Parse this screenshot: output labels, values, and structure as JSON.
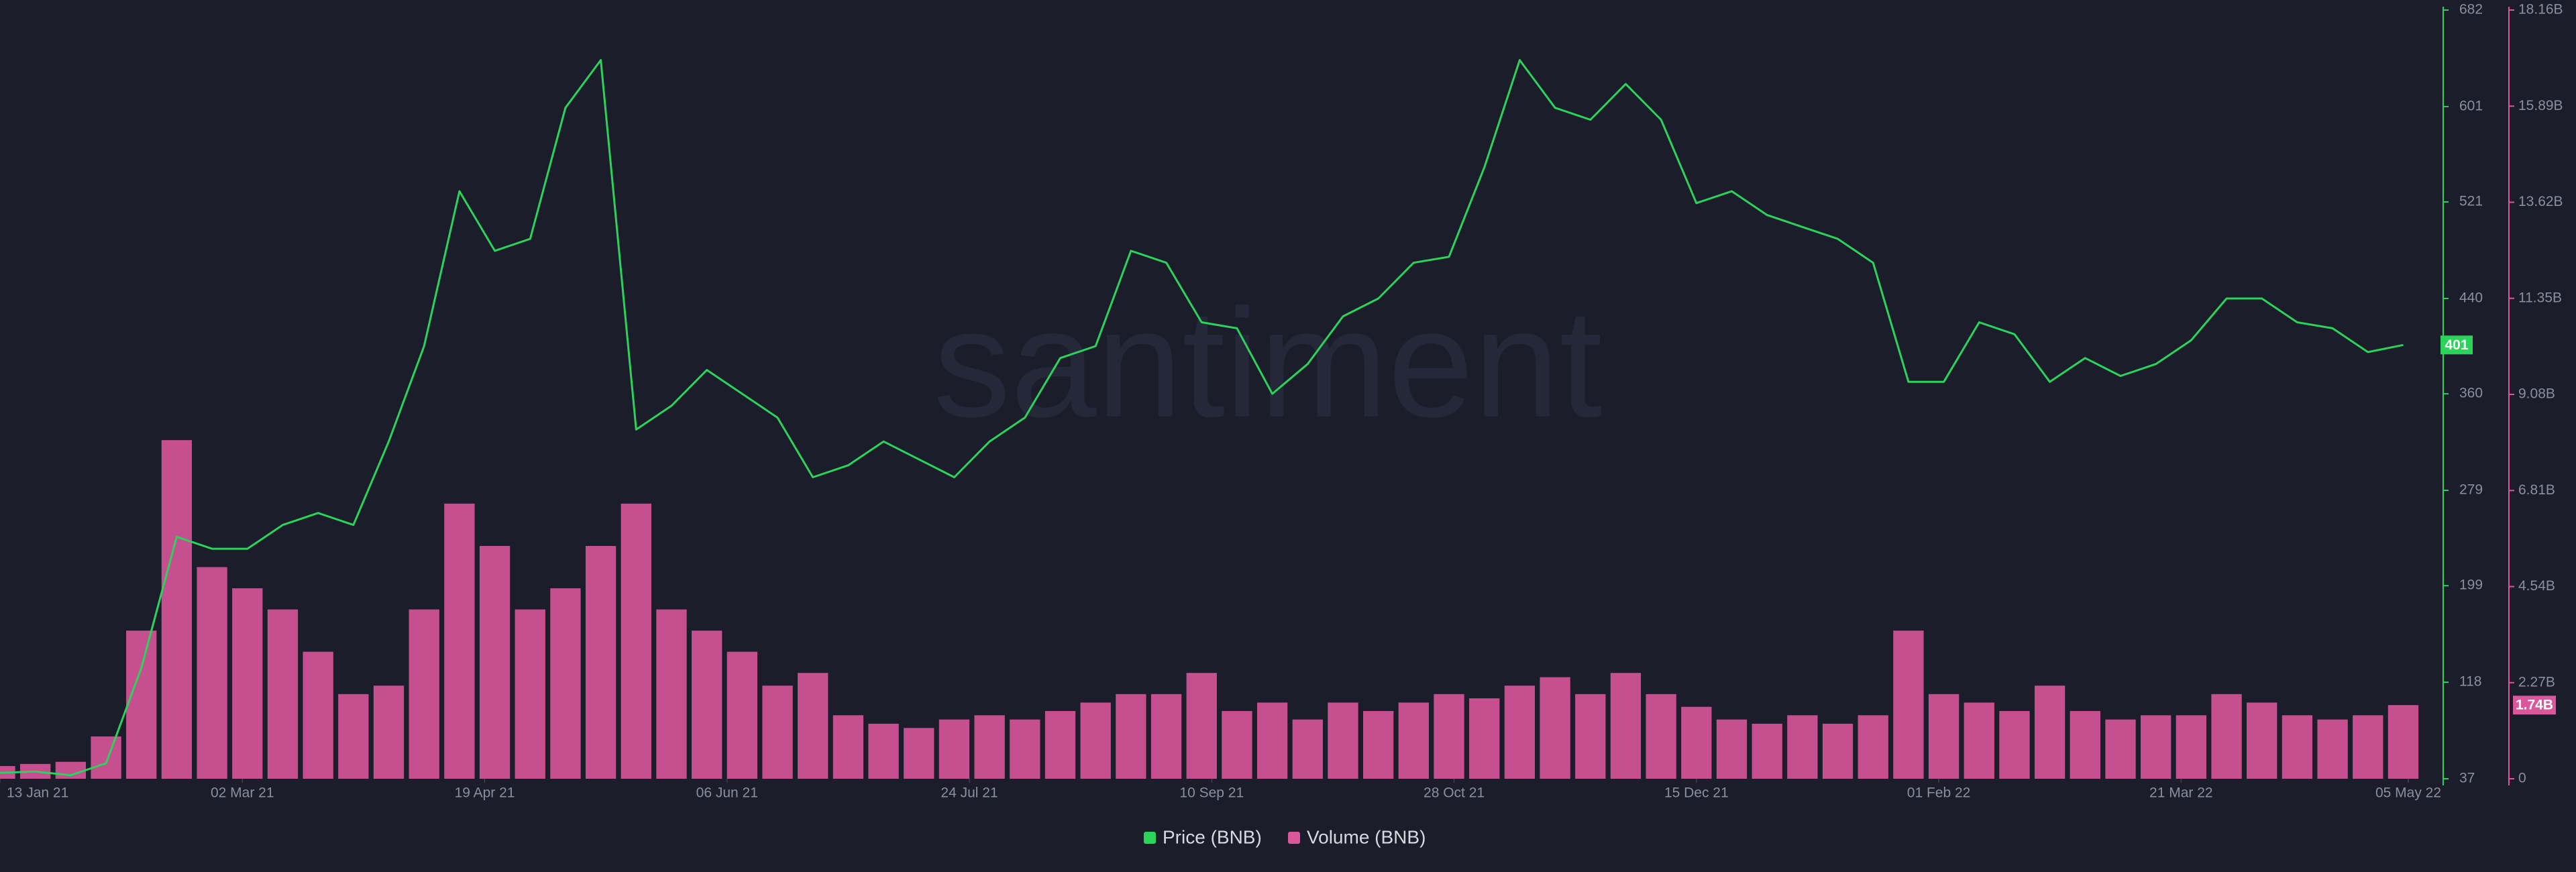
{
  "chart_data": {
    "type": "price-volume",
    "watermark": "santiment",
    "x": [
      "2021-01-13",
      "2021-01-20",
      "2021-01-27",
      "2021-02-03",
      "2021-02-10",
      "2021-02-17",
      "2021-02-24",
      "2021-03-03",
      "2021-03-10",
      "2021-03-17",
      "2021-03-24",
      "2021-03-31",
      "2021-04-07",
      "2021-04-14",
      "2021-04-21",
      "2021-04-28",
      "2021-05-05",
      "2021-05-12",
      "2021-05-19",
      "2021-05-26",
      "2021-06-02",
      "2021-06-09",
      "2021-06-16",
      "2021-06-23",
      "2021-06-30",
      "2021-07-07",
      "2021-07-14",
      "2021-07-21",
      "2021-07-28",
      "2021-08-04",
      "2021-08-11",
      "2021-08-18",
      "2021-08-25",
      "2021-09-01",
      "2021-09-08",
      "2021-09-15",
      "2021-09-22",
      "2021-09-29",
      "2021-10-06",
      "2021-10-13",
      "2021-10-20",
      "2021-10-27",
      "2021-11-03",
      "2021-11-10",
      "2021-11-17",
      "2021-11-24",
      "2021-12-01",
      "2021-12-08",
      "2021-12-15",
      "2021-12-22",
      "2021-12-29",
      "2022-01-05",
      "2022-01-12",
      "2022-01-19",
      "2022-01-26",
      "2022-02-02",
      "2022-02-09",
      "2022-02-16",
      "2022-02-23",
      "2022-03-02",
      "2022-03-09",
      "2022-03-16",
      "2022-03-23",
      "2022-03-30",
      "2022-04-06",
      "2022-04-13",
      "2022-04-20",
      "2022-04-27",
      "2022-05-04"
    ],
    "xlim": [
      "2021-01-13",
      "2022-05-05"
    ],
    "xticks": [
      {
        "value": "2021-01-13",
        "label": "13 Jan 21"
      },
      {
        "value": "2021-03-02",
        "label": "02 Mar 21"
      },
      {
        "value": "2021-04-19",
        "label": "19 Apr 21"
      },
      {
        "value": "2021-06-06",
        "label": "06 Jun 21"
      },
      {
        "value": "2021-07-24",
        "label": "24 Jul 21"
      },
      {
        "value": "2021-09-10",
        "label": "10 Sep 21"
      },
      {
        "value": "2021-10-28",
        "label": "28 Oct 21"
      },
      {
        "value": "2021-12-15",
        "label": "15 Dec 21"
      },
      {
        "value": "2022-02-01",
        "label": "01 Feb 22"
      },
      {
        "value": "2022-03-21",
        "label": "21 Mar 22"
      },
      {
        "value": "2022-05-05",
        "label": "05 May 22"
      }
    ],
    "ylim": [
      37,
      682
    ],
    "yticks": [
      37,
      118,
      199,
      279,
      360,
      440,
      521,
      601,
      682
    ],
    "y2lim": [
      0,
      18160000000
    ],
    "y2ticks": [
      {
        "value": 0,
        "label": "0"
      },
      {
        "value": 2270000000,
        "label": "2.27B"
      },
      {
        "value": 4540000000,
        "label": "4.54B"
      },
      {
        "value": 6810000000,
        "label": "6.81B"
      },
      {
        "value": 9080000000,
        "label": "9.08B"
      },
      {
        "value": 11350000000,
        "label": "11.35B"
      },
      {
        "value": 13620000000,
        "label": "13.62B"
      },
      {
        "value": 15890000000,
        "label": "15.89B"
      },
      {
        "value": 18160000000,
        "label": "18.16B"
      }
    ],
    "series": [
      {
        "name": "Price (BNB)",
        "color": "#2bd35a",
        "values": [
          42,
          43,
          40,
          50,
          130,
          240,
          230,
          230,
          250,
          260,
          250,
          320,
          400,
          530,
          480,
          490,
          600,
          640,
          330,
          350,
          380,
          360,
          340,
          290,
          300,
          320,
          305,
          290,
          320,
          340,
          390,
          400,
          480,
          470,
          420,
          415,
          360,
          385,
          425,
          440,
          470,
          475,
          550,
          640,
          600,
          590,
          620,
          590,
          520,
          530,
          510,
          500,
          490,
          470,
          370,
          370,
          420,
          410,
          370,
          390,
          375,
          385,
          405,
          440,
          440,
          420,
          415,
          395,
          401
        ]
      },
      {
        "name": "Volume (BNB)",
        "color": "#d9579a",
        "axis": "y2",
        "values": [
          300000000.0,
          350000000.0,
          400000000.0,
          1000000000.0,
          3500000000.0,
          8000000000.0,
          5000000000.0,
          4500000000.0,
          4000000000.0,
          3000000000.0,
          2000000000.0,
          2200000000.0,
          4000000000.0,
          6500000000.0,
          5500000000.0,
          4000000000.0,
          4500000000.0,
          5500000000.0,
          6500000000.0,
          4000000000.0,
          3500000000.0,
          3000000000.0,
          2200000000.0,
          2500000000.0,
          1500000000.0,
          1300000000.0,
          1200000000.0,
          1400000000.0,
          1500000000.0,
          1400000000.0,
          1600000000.0,
          1800000000.0,
          2000000000.0,
          2000000000.0,
          2500000000.0,
          1600000000.0,
          1800000000.0,
          1400000000.0,
          1800000000.0,
          1600000000.0,
          1800000000.0,
          2000000000.0,
          1900000000.0,
          2200000000.0,
          2400000000.0,
          2000000000.0,
          2500000000.0,
          2000000000.0,
          1700000000.0,
          1400000000.0,
          1300000000.0,
          1500000000.0,
          1300000000.0,
          1500000000.0,
          3500000000.0,
          2000000000.0,
          1800000000.0,
          1600000000.0,
          2200000000.0,
          1600000000.0,
          1400000000.0,
          1500000000.0,
          1500000000.0,
          2000000000.0,
          1800000000.0,
          1500000000.0,
          1400000000.0,
          1500000000.0,
          1740000000.0
        ],
        "value_labels": [
          null,
          null,
          null,
          null,
          null,
          null,
          null,
          null,
          null,
          null,
          null,
          null,
          null,
          null,
          null,
          null,
          null,
          null,
          null,
          null,
          null,
          null,
          null,
          null,
          null,
          null,
          null,
          null,
          null,
          null,
          null,
          null,
          null,
          null,
          null,
          null,
          null,
          null,
          null,
          null,
          null,
          null,
          null,
          null,
          null,
          null,
          null,
          null,
          null,
          null,
          null,
          null,
          null,
          null,
          null,
          null,
          null,
          null,
          null,
          null,
          null,
          null,
          null,
          null,
          null,
          null,
          null,
          null,
          "1.74B"
        ]
      }
    ]
  }
}
